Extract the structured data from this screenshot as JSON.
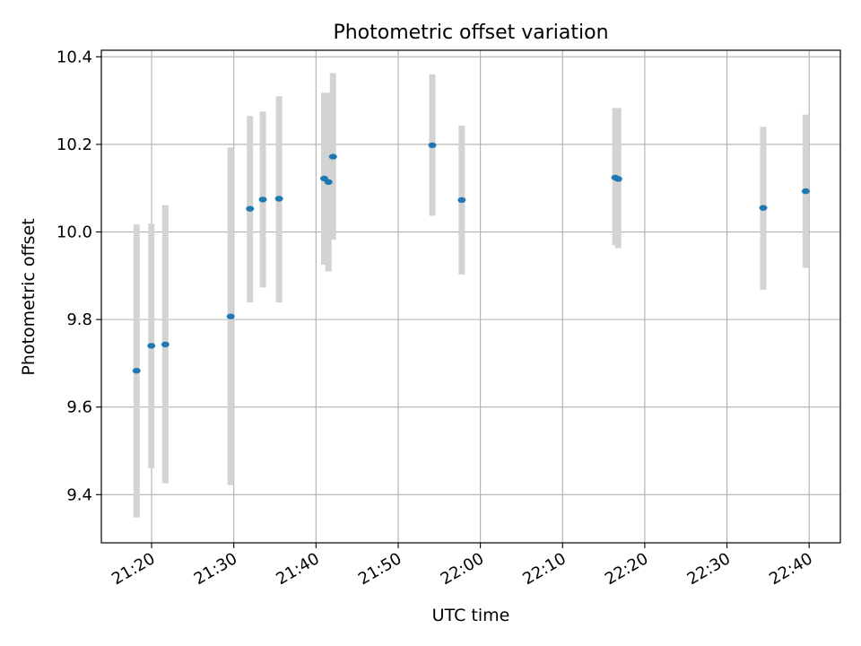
{
  "chart_data": {
    "type": "scatter",
    "title": "Photometric offset variation",
    "xlabel": "UTC time",
    "ylabel": "Photometric offset",
    "x_axis_kind": "time",
    "x_ticks": [
      "21:20",
      "21:30",
      "21:40",
      "21:50",
      "22:00",
      "22:10",
      "22:20",
      "22:30",
      "22:40"
    ],
    "y_ticks": [
      "9.4",
      "9.6",
      "9.8",
      "10.0",
      "10.2",
      "10.4"
    ],
    "xlim": [
      "21:13:53",
      "22:43:48"
    ],
    "ylim": [
      9.29,
      10.415
    ],
    "grid": true,
    "legend": false,
    "colors": {
      "point": "#1f77b4",
      "errorbar": "#d3d3d3",
      "grid": "#b0b0b0",
      "axes": "#000000"
    },
    "points": [
      {
        "x": "21:18:10",
        "y": 9.683,
        "ylo": 9.348,
        "yhi": 10.017
      },
      {
        "x": "21:19:58",
        "y": 9.74,
        "ylo": 9.46,
        "yhi": 10.019
      },
      {
        "x": "21:21:40",
        "y": 9.743,
        "ylo": 9.426,
        "yhi": 10.061
      },
      {
        "x": "21:29:37",
        "y": 9.807,
        "ylo": 9.422,
        "yhi": 10.193
      },
      {
        "x": "21:31:58",
        "y": 10.053,
        "ylo": 9.839,
        "yhi": 10.265
      },
      {
        "x": "21:33:32",
        "y": 10.074,
        "ylo": 9.873,
        "yhi": 10.275
      },
      {
        "x": "21:35:30",
        "y": 10.076,
        "ylo": 9.839,
        "yhi": 10.31
      },
      {
        "x": "21:41:00",
        "y": 10.122,
        "ylo": 9.925,
        "yhi": 10.318
      },
      {
        "x": "21:41:31",
        "y": 10.114,
        "ylo": 9.91,
        "yhi": 10.318
      },
      {
        "x": "21:42:04",
        "y": 10.172,
        "ylo": 9.982,
        "yhi": 10.363
      },
      {
        "x": "21:54:09",
        "y": 10.198,
        "ylo": 10.037,
        "yhi": 10.36
      },
      {
        "x": "21:57:44",
        "y": 10.073,
        "ylo": 9.903,
        "yhi": 10.243
      },
      {
        "x": "22:16:25",
        "y": 10.124,
        "ylo": 9.97,
        "yhi": 10.283
      },
      {
        "x": "22:16:46",
        "y": 10.121,
        "ylo": 9.963,
        "yhi": 10.283
      },
      {
        "x": "22:34:25",
        "y": 10.055,
        "ylo": 9.868,
        "yhi": 10.24
      },
      {
        "x": "22:39:35",
        "y": 10.093,
        "ylo": 9.918,
        "yhi": 10.268
      }
    ]
  }
}
